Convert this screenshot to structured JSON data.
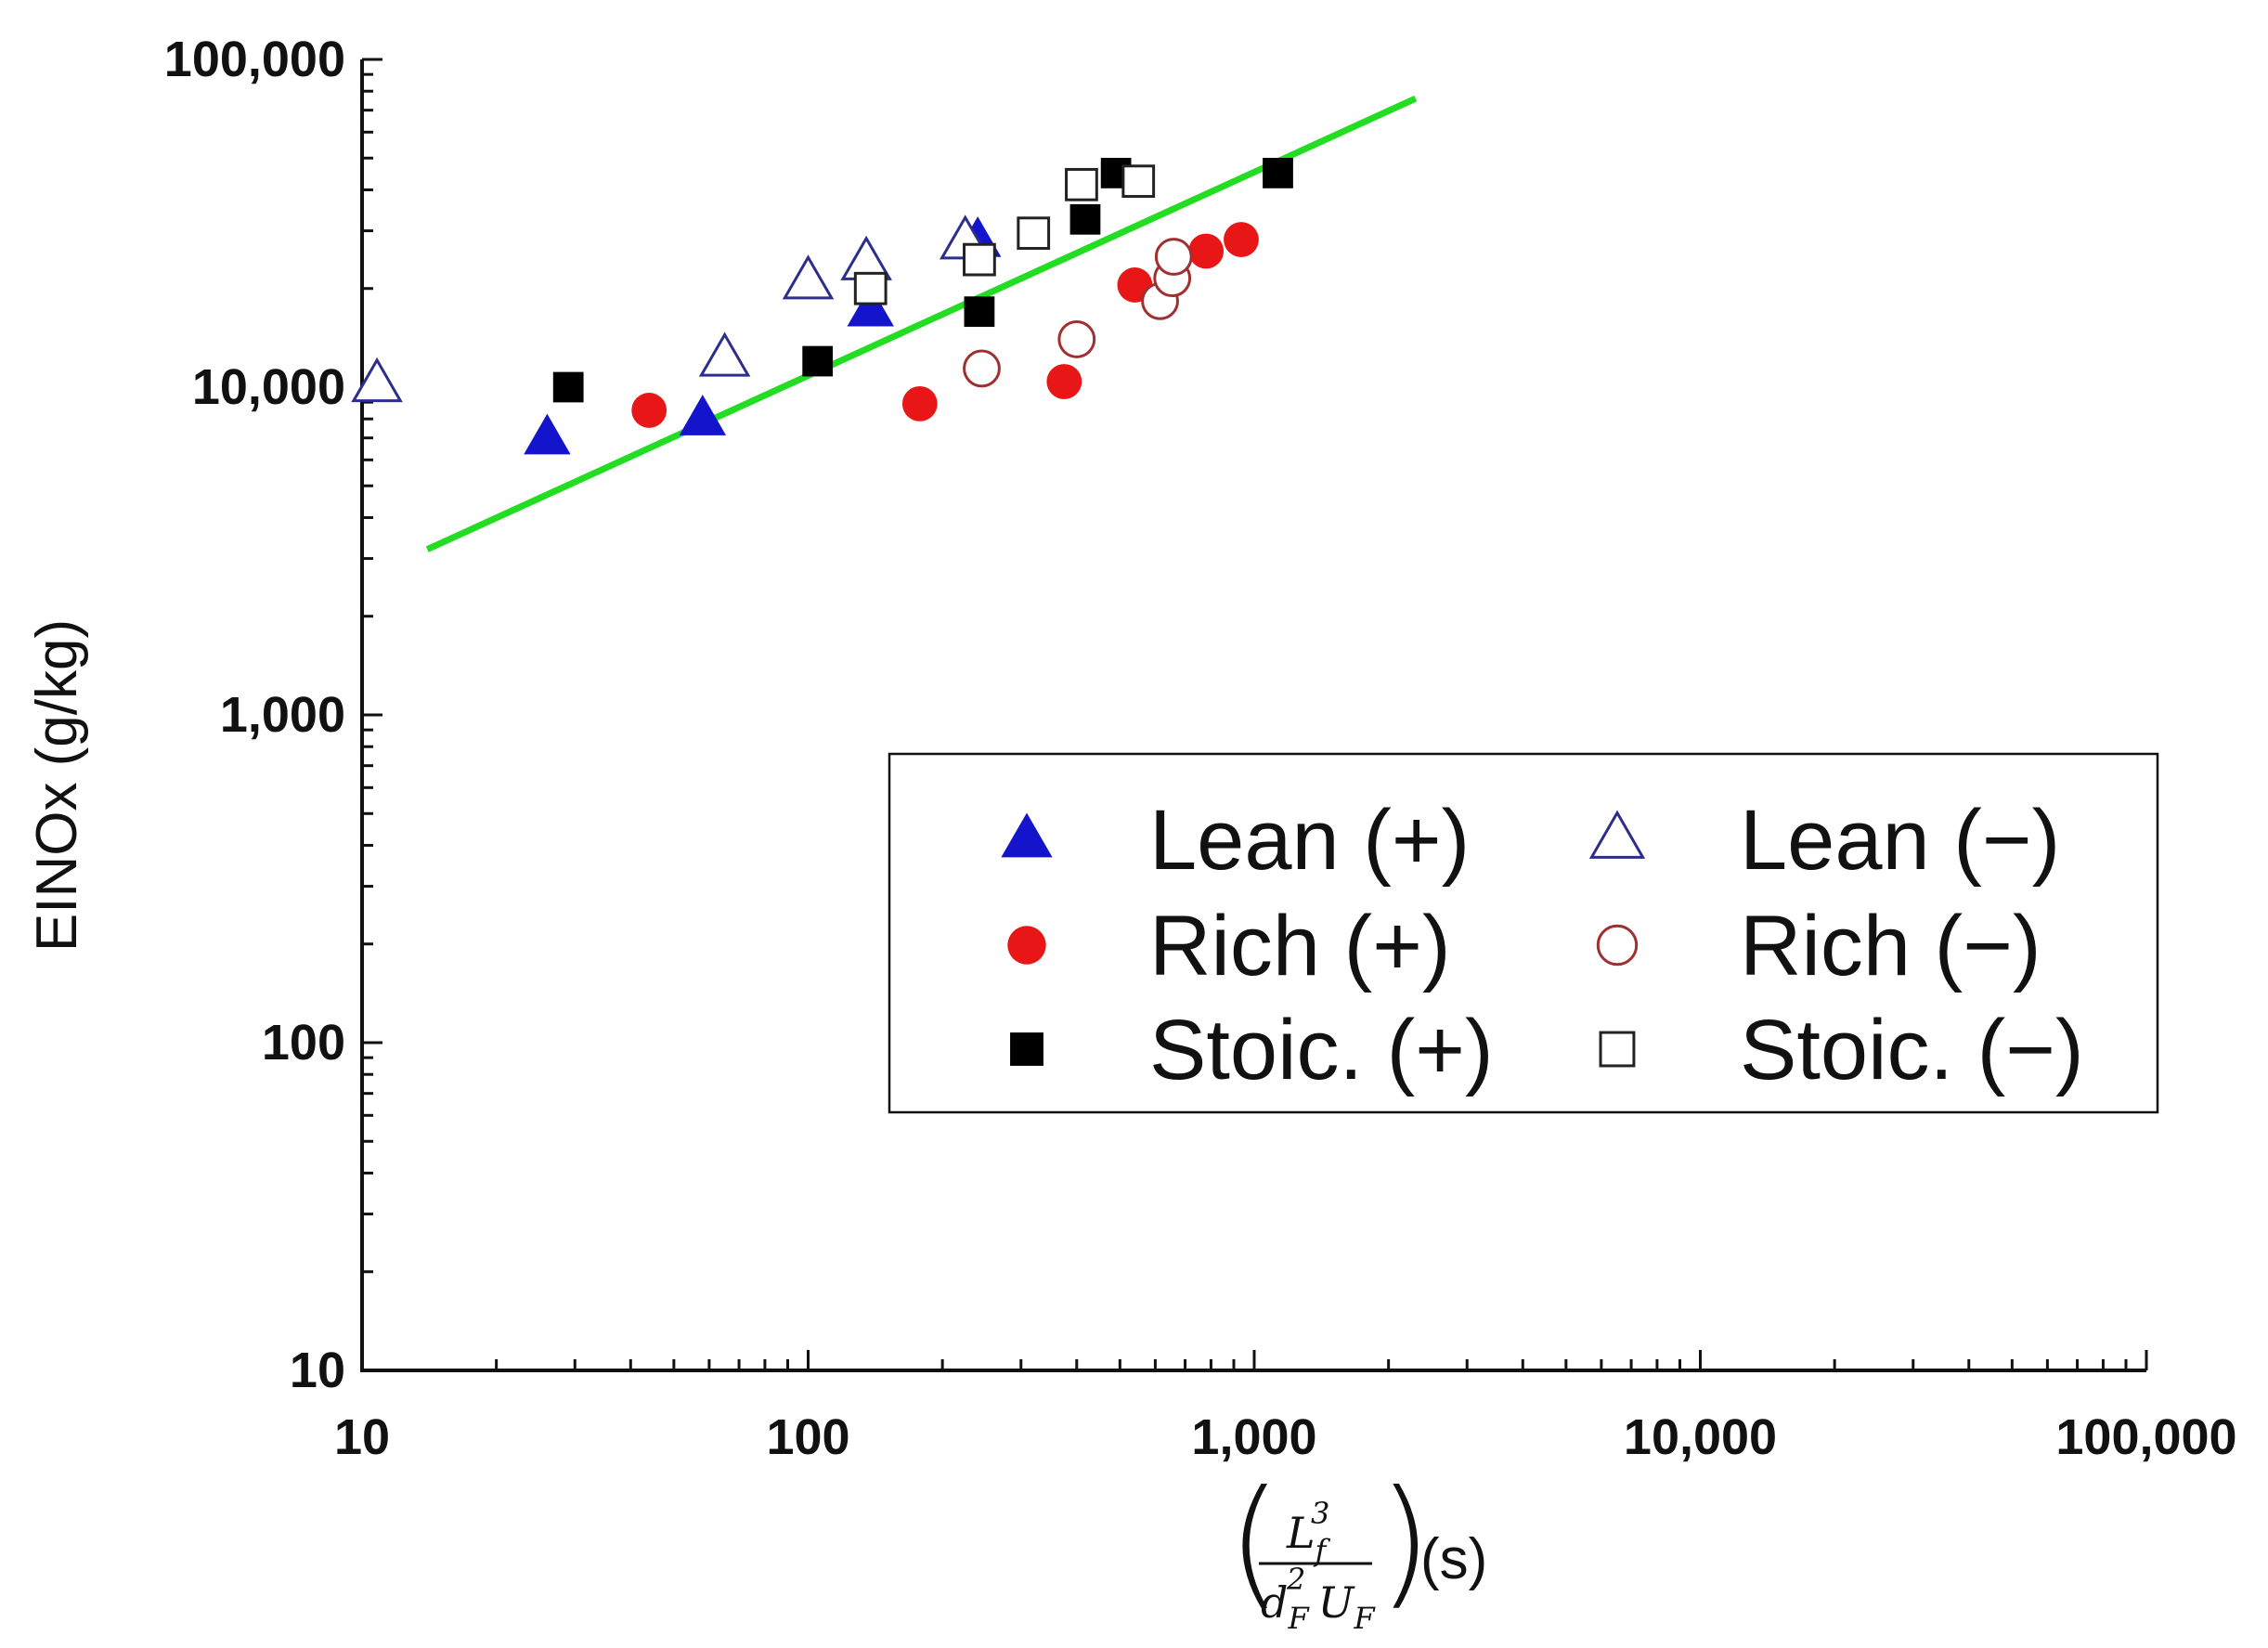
{
  "chart_data": {
    "type": "scatter",
    "scale": "log-log",
    "xlabel_suffix": "(s)",
    "xlabel_math": {
      "numerator": "L",
      "numerator_sub": "f",
      "numerator_sup": "3",
      "denominator_d": "d",
      "denominator_d_sub": "F",
      "denominator_d_sup": "2",
      "denominator_u": "U",
      "denominator_u_sub": "F"
    },
    "ylabel": "EINOx (g/kg)",
    "xlim": [
      10,
      100000
    ],
    "ylim": [
      10,
      100000
    ],
    "x_ticks": [
      {
        "value": 10,
        "label": "10"
      },
      {
        "value": 100,
        "label": "100"
      },
      {
        "value": 1000,
        "label": "1,000"
      },
      {
        "value": 10000,
        "label": "10,000"
      },
      {
        "value": 100000,
        "label": "100,000"
      }
    ],
    "y_ticks": [
      {
        "value": 10,
        "label": "10"
      },
      {
        "value": 100,
        "label": "100"
      },
      {
        "value": 1000,
        "label": "1,000"
      },
      {
        "value": 10000,
        "label": "10,000"
      },
      {
        "value": 100000,
        "label": "100,000"
      }
    ],
    "series": [
      {
        "name": "Lean (+)",
        "marker": "triangle",
        "filled": true,
        "color": "#1414cc",
        "points": [
          [
            26,
            7000
          ],
          [
            58,
            8000
          ],
          [
            138,
            17200
          ],
          [
            240,
            28000
          ]
        ]
      },
      {
        "name": "Lean (−)",
        "marker": "triangle",
        "filled": false,
        "color": "#2d2d8a",
        "points": [
          [
            10.8,
            10200
          ],
          [
            65,
            12200
          ],
          [
            100,
            21000
          ],
          [
            135,
            24000
          ],
          [
            225,
            27800
          ]
        ]
      },
      {
        "name": "Rich (+)",
        "marker": "circle",
        "filled": true,
        "color": "#e81616",
        "points": [
          [
            44,
            8500
          ],
          [
            178,
            8900
          ],
          [
            375,
            10400
          ],
          [
            540,
            20500
          ],
          [
            780,
            26000
          ],
          [
            935,
            28200
          ]
        ]
      },
      {
        "name": "Rich (−)",
        "marker": "circle",
        "filled": false,
        "color": "#a03030",
        "points": [
          [
            245,
            11400
          ],
          [
            400,
            14000
          ],
          [
            615,
            18300
          ],
          [
            655,
            21500
          ],
          [
            660,
            25000
          ]
        ]
      },
      {
        "name": "Stoic. (+)",
        "marker": "square",
        "filled": true,
        "color": "#000000",
        "points": [
          [
            29,
            10000
          ],
          [
            105,
            12000
          ],
          [
            242,
            17000
          ],
          [
            418,
            32500
          ],
          [
            490,
            45000
          ],
          [
            1130,
            45000
          ]
        ]
      },
      {
        "name": "Stoic. (−)",
        "marker": "square",
        "filled": false,
        "color": "#222222",
        "points": [
          [
            138,
            20000
          ],
          [
            242,
            24500
          ],
          [
            320,
            29500
          ],
          [
            410,
            41500
          ],
          [
            550,
            42500
          ]
        ]
      }
    ],
    "fit_line": {
      "color": "#22dd22",
      "points": [
        [
          14,
          3200
        ],
        [
          2300,
          76000
        ]
      ]
    },
    "legend": {
      "position": "center-right",
      "items": [
        {
          "label": "Lean (+)",
          "series": 0
        },
        {
          "label": "Lean (−)",
          "series": 1
        },
        {
          "label": "Rich (+)",
          "series": 2
        },
        {
          "label": "Rich (−)",
          "series": 3
        },
        {
          "label": "Stoic. (+)",
          "series": 4
        },
        {
          "label": "Stoic. (−)",
          "series": 5
        }
      ]
    }
  }
}
